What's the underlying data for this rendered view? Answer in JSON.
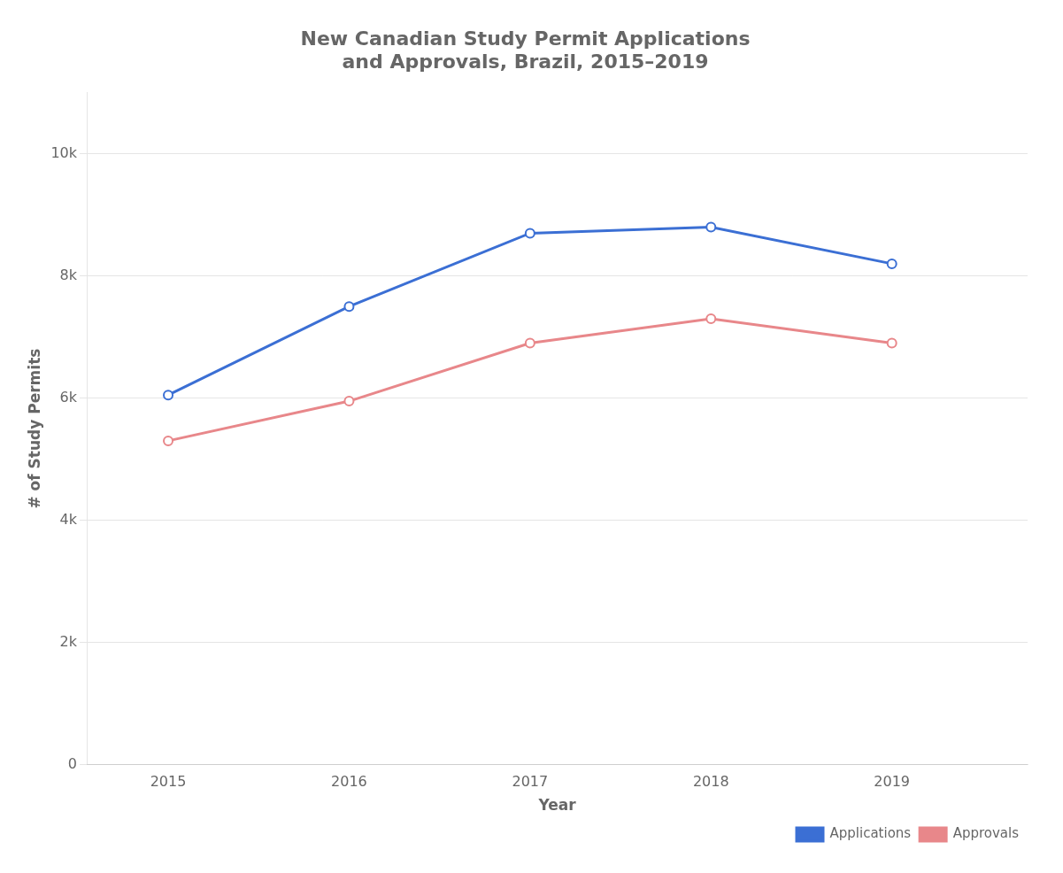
{
  "chart_data": {
    "type": "line",
    "title": "New Canadian Study Permit Applications\nand Approvals, Brazil, 2015–2019",
    "x_label": "Year",
    "y_label": "# of Study Permits",
    "x": [
      2015,
      2016,
      2017,
      2018,
      2019
    ],
    "series": [
      {
        "name": "Applications",
        "color": "#3B6FD4",
        "marker": "o",
        "values": [
          6050,
          7500,
          8700,
          8800,
          8200
        ]
      },
      {
        "name": "Approvals",
        "color": "#E8878A",
        "marker": "o",
        "values": [
          5300,
          5950,
          6900,
          7300,
          6900
        ]
      }
    ],
    "xlim": [
      2014.55,
      2019.75
    ],
    "xticks": [
      2015,
      2016,
      2017,
      2018,
      2019
    ],
    "ylim": [
      0,
      11000
    ],
    "yticks": [
      0,
      {
        "value": 2000,
        "label": "2k"
      },
      {
        "value": 4000,
        "label": "4k"
      },
      {
        "value": 6000,
        "label": "6k"
      },
      {
        "value": 8000,
        "label": "8k"
      },
      {
        "value": 10000,
        "label": "10k"
      }
    ],
    "grid": "y",
    "legend": "lower right"
  }
}
